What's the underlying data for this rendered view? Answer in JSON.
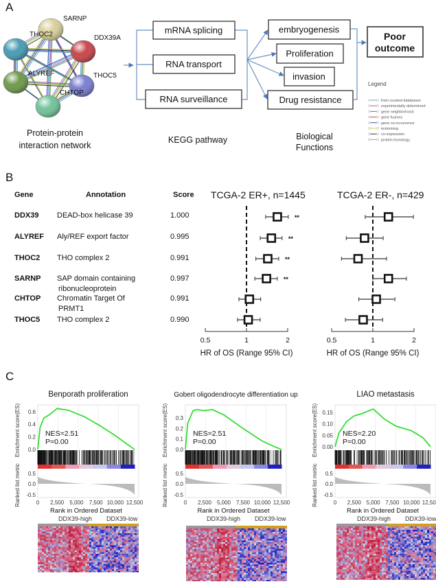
{
  "panels": {
    "a": "A",
    "b": "B",
    "c": "C"
  },
  "panel_a": {
    "network": {
      "nodes": [
        {
          "label": "SARNP",
          "color": "#d8cf9a"
        },
        {
          "label": "THOC2",
          "color": "#4a9cb5"
        },
        {
          "label": "DDX39A",
          "color": "#c8474c"
        },
        {
          "label": "ALYREF",
          "color": "#6f9a4c"
        },
        {
          "label": "THOC5",
          "color": "#8aa8d8"
        },
        {
          "label": "CHTOP",
          "color": "#7b7fd0"
        },
        {
          "label": "",
          "color": "#72c49a"
        }
      ],
      "caption_line1": "Protein-protein",
      "caption_line2": "interaction network"
    },
    "kegg": {
      "items": [
        "mRNA splicing",
        "RNA transport",
        "RNA surveillance"
      ],
      "caption": "KEGG pathway"
    },
    "functions": {
      "items": [
        "embryogenesis",
        "Proliferation",
        "invasion",
        "Drug resistance"
      ],
      "caption_line1": "Biological",
      "caption_line2": "Functions"
    },
    "outcome": {
      "line1": "Poor",
      "line2": "outcome"
    },
    "legend": {
      "title": "Legend",
      "items": [
        {
          "label": "from curated databases",
          "color": "#4fb3c9"
        },
        {
          "label": "experimentally determined",
          "color": "#c04ac0"
        },
        {
          "label": "gene neighborhood",
          "color": "#3aa84a"
        },
        {
          "label": "gene fusions",
          "color": "#d04040"
        },
        {
          "label": "gene co-occurrence",
          "color": "#3a4ac0"
        },
        {
          "label": "textmining",
          "color": "#c8d040"
        },
        {
          "label": "co-expression",
          "color": "#333333"
        },
        {
          "label": "protein homology",
          "color": "#9a9ad8"
        }
      ]
    }
  },
  "panel_b": {
    "headers": {
      "gene": "Gene",
      "annotation": "Annotation",
      "score": "Score"
    },
    "rows": [
      {
        "gene": "DDX39",
        "annotation": "DEAD-box helicase 39",
        "annotation2": "",
        "score": "1.000"
      },
      {
        "gene": "ALYREF",
        "annotation": "Aly/REF export factor",
        "annotation2": "",
        "score": "0.995"
      },
      {
        "gene": "THOC2",
        "annotation": "THO complex 2",
        "annotation2": "",
        "score": "0.991"
      },
      {
        "gene": "SARNP",
        "annotation": "SAP domain containing",
        "annotation2": "ribonucleoprotein",
        "score": "0.997"
      },
      {
        "gene": "CHTOP",
        "annotation": "Chromatin Target Of",
        "annotation2": "PRMT1",
        "score": "0.991"
      },
      {
        "gene": "THOC5",
        "annotation": "THO complex 2",
        "annotation2": "",
        "score": "0.990"
      }
    ]
  },
  "panel_c": {
    "heatmap_labels": {
      "high": "DDX39-high",
      "low": "DDX39-low"
    },
    "colors": {
      "es_curve": "#33dd33",
      "high_bar": "#999999",
      "low_bar": "#d4a017",
      "up": "#d23a3a",
      "down": "#3a3ad2"
    }
  },
  "chart_data": [
    {
      "type": "forest",
      "title": "TCGA-2 ER+, n=1445",
      "xlabel": "HR of OS (Range 95% CI)",
      "x_scale": "log",
      "x_ticks": [
        "0.5",
        "1",
        "2"
      ],
      "reference_line": 1,
      "categories": [
        "DDX39",
        "ALYREF",
        "THOC2",
        "SARNP",
        "CHTOP",
        "THOC5"
      ],
      "hr": [
        1.68,
        1.52,
        1.43,
        1.4,
        1.05,
        1.03
      ],
      "ci_low": [
        1.38,
        1.26,
        1.17,
        1.15,
        0.88,
        0.86
      ],
      "ci_high": [
        2.02,
        1.82,
        1.72,
        1.68,
        1.27,
        1.26
      ],
      "annotations": [
        "**",
        "**",
        "**",
        "**",
        "",
        ""
      ]
    },
    {
      "type": "forest",
      "title": "TCGA-2 ER-, n=429",
      "xlabel": "HR of OS (Range 95% CI)",
      "x_scale": "log",
      "x_ticks": [
        "0.5",
        "1",
        "2"
      ],
      "reference_line": 1,
      "categories": [
        "DDX39",
        "ALYREF",
        "THOC2",
        "SARNP",
        "CHTOP",
        "THOC5"
      ],
      "hr": [
        1.3,
        0.87,
        0.78,
        1.3,
        1.06,
        0.85
      ],
      "ci_low": [
        0.88,
        0.64,
        0.59,
        1.0,
        0.79,
        0.63
      ],
      "ci_high": [
        1.98,
        1.19,
        1.26,
        1.76,
        1.45,
        1.18
      ],
      "annotations": [
        "",
        "",
        "",
        "",
        "",
        ""
      ]
    },
    {
      "type": "line",
      "title": "Benporath  proliferation",
      "ylabel": "Enrichment score(ES)",
      "ylabel2": "Ranked list metric",
      "xlabel": "Rank in Ordered Dataset",
      "x_ticks": [
        "0",
        "2,500",
        "5,000",
        "7,500",
        "10,000",
        "12,500"
      ],
      "y_ticks": [
        "0.0",
        "0.2",
        "0.4",
        "0.6"
      ],
      "y2_ticks": [
        "0.5",
        "0.0",
        "-0.5"
      ],
      "ylim": [
        0,
        0.6
      ],
      "nes": "NES=2.51",
      "p": "P=0.00",
      "x": [
        0,
        300,
        800,
        1500,
        2500,
        4000,
        6000,
        8000,
        10000,
        12500
      ],
      "y": [
        0,
        0.35,
        0.5,
        0.55,
        0.65,
        0.62,
        0.52,
        0.38,
        0.22,
        0
      ]
    },
    {
      "type": "line",
      "title": "Gobert oligodendrocyte differentiation  up",
      "ylabel": "Enrichment score(ES)",
      "ylabel2": "Ranked list metric",
      "xlabel": "Rank in Ordered Dataset",
      "x_ticks": [
        "0",
        "2,500",
        "5,000",
        "7,500",
        "10,000",
        "12,500"
      ],
      "y_ticks": [
        "0.0",
        "0.1",
        "0.2",
        "0.3"
      ],
      "y2_ticks": [
        "0.5",
        "0.0",
        "-0.5"
      ],
      "ylim": [
        0,
        0.3
      ],
      "nes": "NES=2.51",
      "p": "P=0.00",
      "x": [
        0,
        300,
        1000,
        1500,
        2500,
        3500,
        5000,
        7500,
        10000,
        11500,
        12500
      ],
      "y": [
        0,
        0.25,
        0.37,
        0.38,
        0.37,
        0.38,
        0.33,
        0.2,
        0.08,
        0.03,
        0
      ]
    },
    {
      "type": "line",
      "title": "LIAO metastasis",
      "ylabel": "Enrichment score(ES)",
      "ylabel2": "Ranked list metric",
      "xlabel": "Rank in Ordered Dataset",
      "x_ticks": [
        "0",
        "2,500",
        "5,000",
        "7,500",
        "10,000",
        "12,500"
      ],
      "y_ticks": [
        "0.00",
        "0.05",
        "0.10",
        "0.15"
      ],
      "y2_ticks": [
        "0.5",
        "0.0",
        "-0.5"
      ],
      "ylim": [
        0,
        0.15
      ],
      "nes": "NES=2.20",
      "p": "P=0.00",
      "x": [
        0,
        500,
        1500,
        2500,
        3500,
        5000,
        6500,
        8000,
        10000,
        11500,
        12500
      ],
      "y": [
        0,
        0.06,
        0.11,
        0.135,
        0.145,
        0.165,
        0.12,
        0.09,
        0.07,
        0.04,
        0
      ]
    }
  ]
}
